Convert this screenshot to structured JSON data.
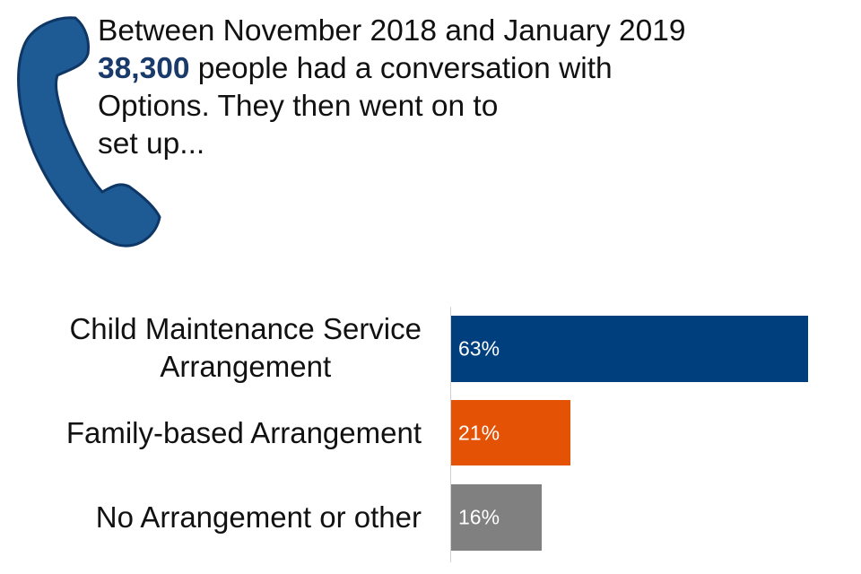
{
  "intro": {
    "line1": "Between November 2018 and January 2019",
    "count": "38,300",
    "line2_rest": " people had a conversation with",
    "line3": "Options. They then went on to",
    "line4": "set up..."
  },
  "colors": {
    "phone": "#1e5a94",
    "phone_outline": "#0f3766",
    "highlight": "#1a3a6b"
  },
  "chart_data": {
    "type": "bar",
    "orientation": "horizontal",
    "title": "",
    "xlabel": "",
    "ylabel": "",
    "xlim": [
      0,
      100
    ],
    "categories": [
      "Child Maintenance Service Arrangement",
      "Family-based Arrangement",
      "No Arrangement or other"
    ],
    "category_lines": [
      [
        "Child Maintenance Service",
        "Arrangement"
      ],
      [
        "Family-based Arrangement"
      ],
      [
        "No Arrangement or other"
      ]
    ],
    "values": [
      63,
      21,
      16
    ],
    "labels": [
      "63%",
      "21%",
      "16%"
    ],
    "colors": [
      "#003f7d",
      "#e35205",
      "#808080"
    ]
  }
}
